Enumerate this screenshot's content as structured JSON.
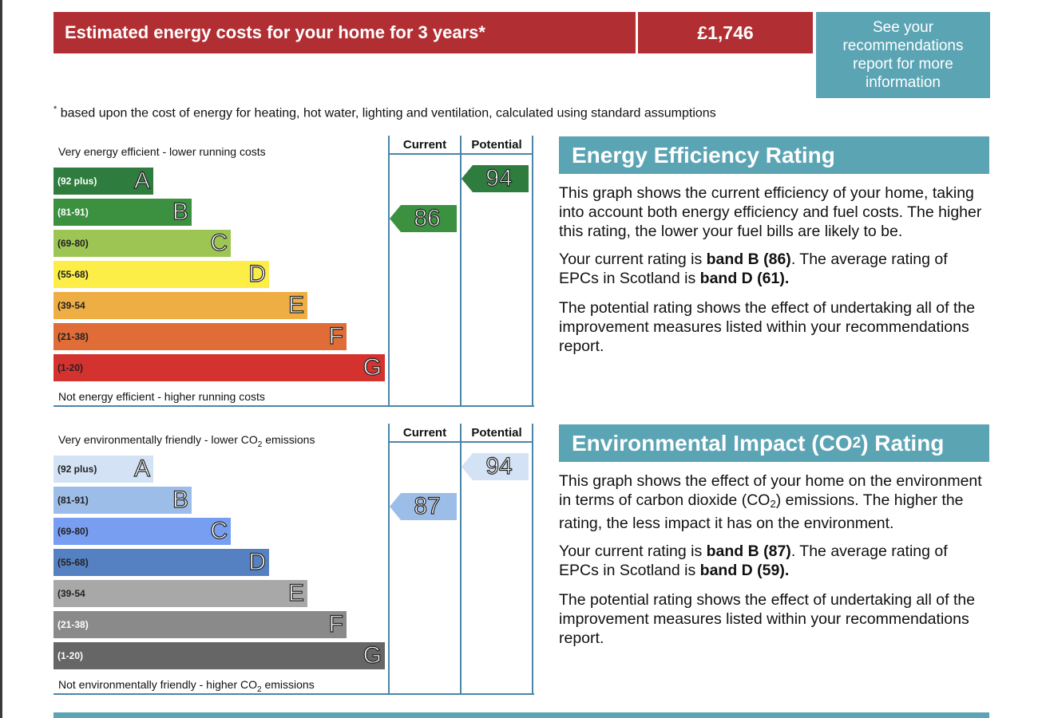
{
  "cost_banner": {
    "label": "Estimated energy costs for your home for 3 years*",
    "value": "£1,746",
    "recommendations_link": "See your recommendations report for more information"
  },
  "footnote": {
    "marker": "*",
    "text": " based upon the cost of energy for heating, hot water, lighting and ventilation, calculated using standard assumptions"
  },
  "energy_chart": {
    "top_caption": "Very energy efficient - lower running costs",
    "bottom_caption": "Not energy efficient - higher running costs",
    "column_current": "Current",
    "column_potential": "Potential",
    "current_rating": "86",
    "potential_rating": "94",
    "current_band": "B",
    "potential_band": "A",
    "bands": [
      {
        "letter": "A",
        "range": "(92 plus)",
        "color": "#2f7d3e",
        "label_color": "#ffffff"
      },
      {
        "letter": "B",
        "range": "(81-91)",
        "color": "#3b9140",
        "label_color": "#ffffff"
      },
      {
        "letter": "C",
        "range": "(69-80)",
        "color": "#9dc553",
        "label_color": "#222222"
      },
      {
        "letter": "D",
        "range": "(55-68)",
        "color": "#fcee47",
        "label_color": "#222222"
      },
      {
        "letter": "E",
        "range": "(39-54",
        "color": "#eeae44",
        "label_color": "#222222"
      },
      {
        "letter": "F",
        "range": "(21-38)",
        "color": "#e06c37",
        "label_color": "#222222"
      },
      {
        "letter": "G",
        "range": "(1-20)",
        "color": "#d3322f",
        "label_color": "#222222"
      }
    ]
  },
  "env_chart": {
    "top_caption_pre": "Very environmentally friendly - lower CO",
    "top_caption_sub": "2",
    "top_caption_post": " emissions",
    "bottom_caption_pre": "Not environmentally friendly - higher CO",
    "bottom_caption_sub": "2",
    "bottom_caption_post": " emissions",
    "column_current": "Current",
    "column_potential": "Potential",
    "current_rating": "87",
    "potential_rating": "94",
    "current_band": "B",
    "potential_band": "A",
    "bands": [
      {
        "letter": "A",
        "range": "(92 plus)",
        "color": "#d3e2f4",
        "label_color": "#222222"
      },
      {
        "letter": "B",
        "range": "(81-91)",
        "color": "#9dbde9",
        "label_color": "#222222"
      },
      {
        "letter": "C",
        "range": "(69-80)",
        "color": "#779ef0",
        "label_color": "#222222"
      },
      {
        "letter": "D",
        "range": "(55-68)",
        "color": "#5581c2",
        "label_color": "#222222"
      },
      {
        "letter": "E",
        "range": "(39-54",
        "color": "#a8a8a8",
        "label_color": "#222222"
      },
      {
        "letter": "F",
        "range": "(21-38)",
        "color": "#8a8a8a",
        "label_color": "#ffffff"
      },
      {
        "letter": "G",
        "range": "(1-20)",
        "color": "#666666",
        "label_color": "#ffffff"
      }
    ]
  },
  "energy_panel": {
    "title": "Energy Efficiency Rating",
    "p1": "This graph shows the current efficiency of your home, taking into account both energy efficiency and fuel costs. The higher this rating, the lower your fuel bills are likely to be.",
    "p2_pre": "Your current rating is ",
    "p2_bold1": "band B (86)",
    "p2_mid": ". The average rating of EPCs in Scotland is ",
    "p2_bold2": "band D (61).",
    "p3": "The potential rating shows the effect of undertaking all of the improvement measures listed within your recommendations report."
  },
  "env_panel": {
    "title_pre": "Environmental Impact (CO",
    "title_sub": "2",
    "title_post": ") Rating",
    "p1_pre": "This graph shows the effect of your home on the environment in terms of carbon dioxide (CO",
    "p1_sub": "2",
    "p1_post": ") emissions. The higher the rating, the less impact it has on the environment.",
    "p2_pre": "Your current rating is ",
    "p2_bold1": "band B (87)",
    "p2_mid": ". The average rating of EPCs in Scotland is ",
    "p2_bold2": "band D (59).",
    "p3": "The potential rating shows the effect of undertaking all of the improvement measures listed within your recommendations report."
  },
  "colors": {
    "cost_red": "#b12e32",
    "teal": "#5ba4b4",
    "frame_blue": "#4a86a8"
  }
}
